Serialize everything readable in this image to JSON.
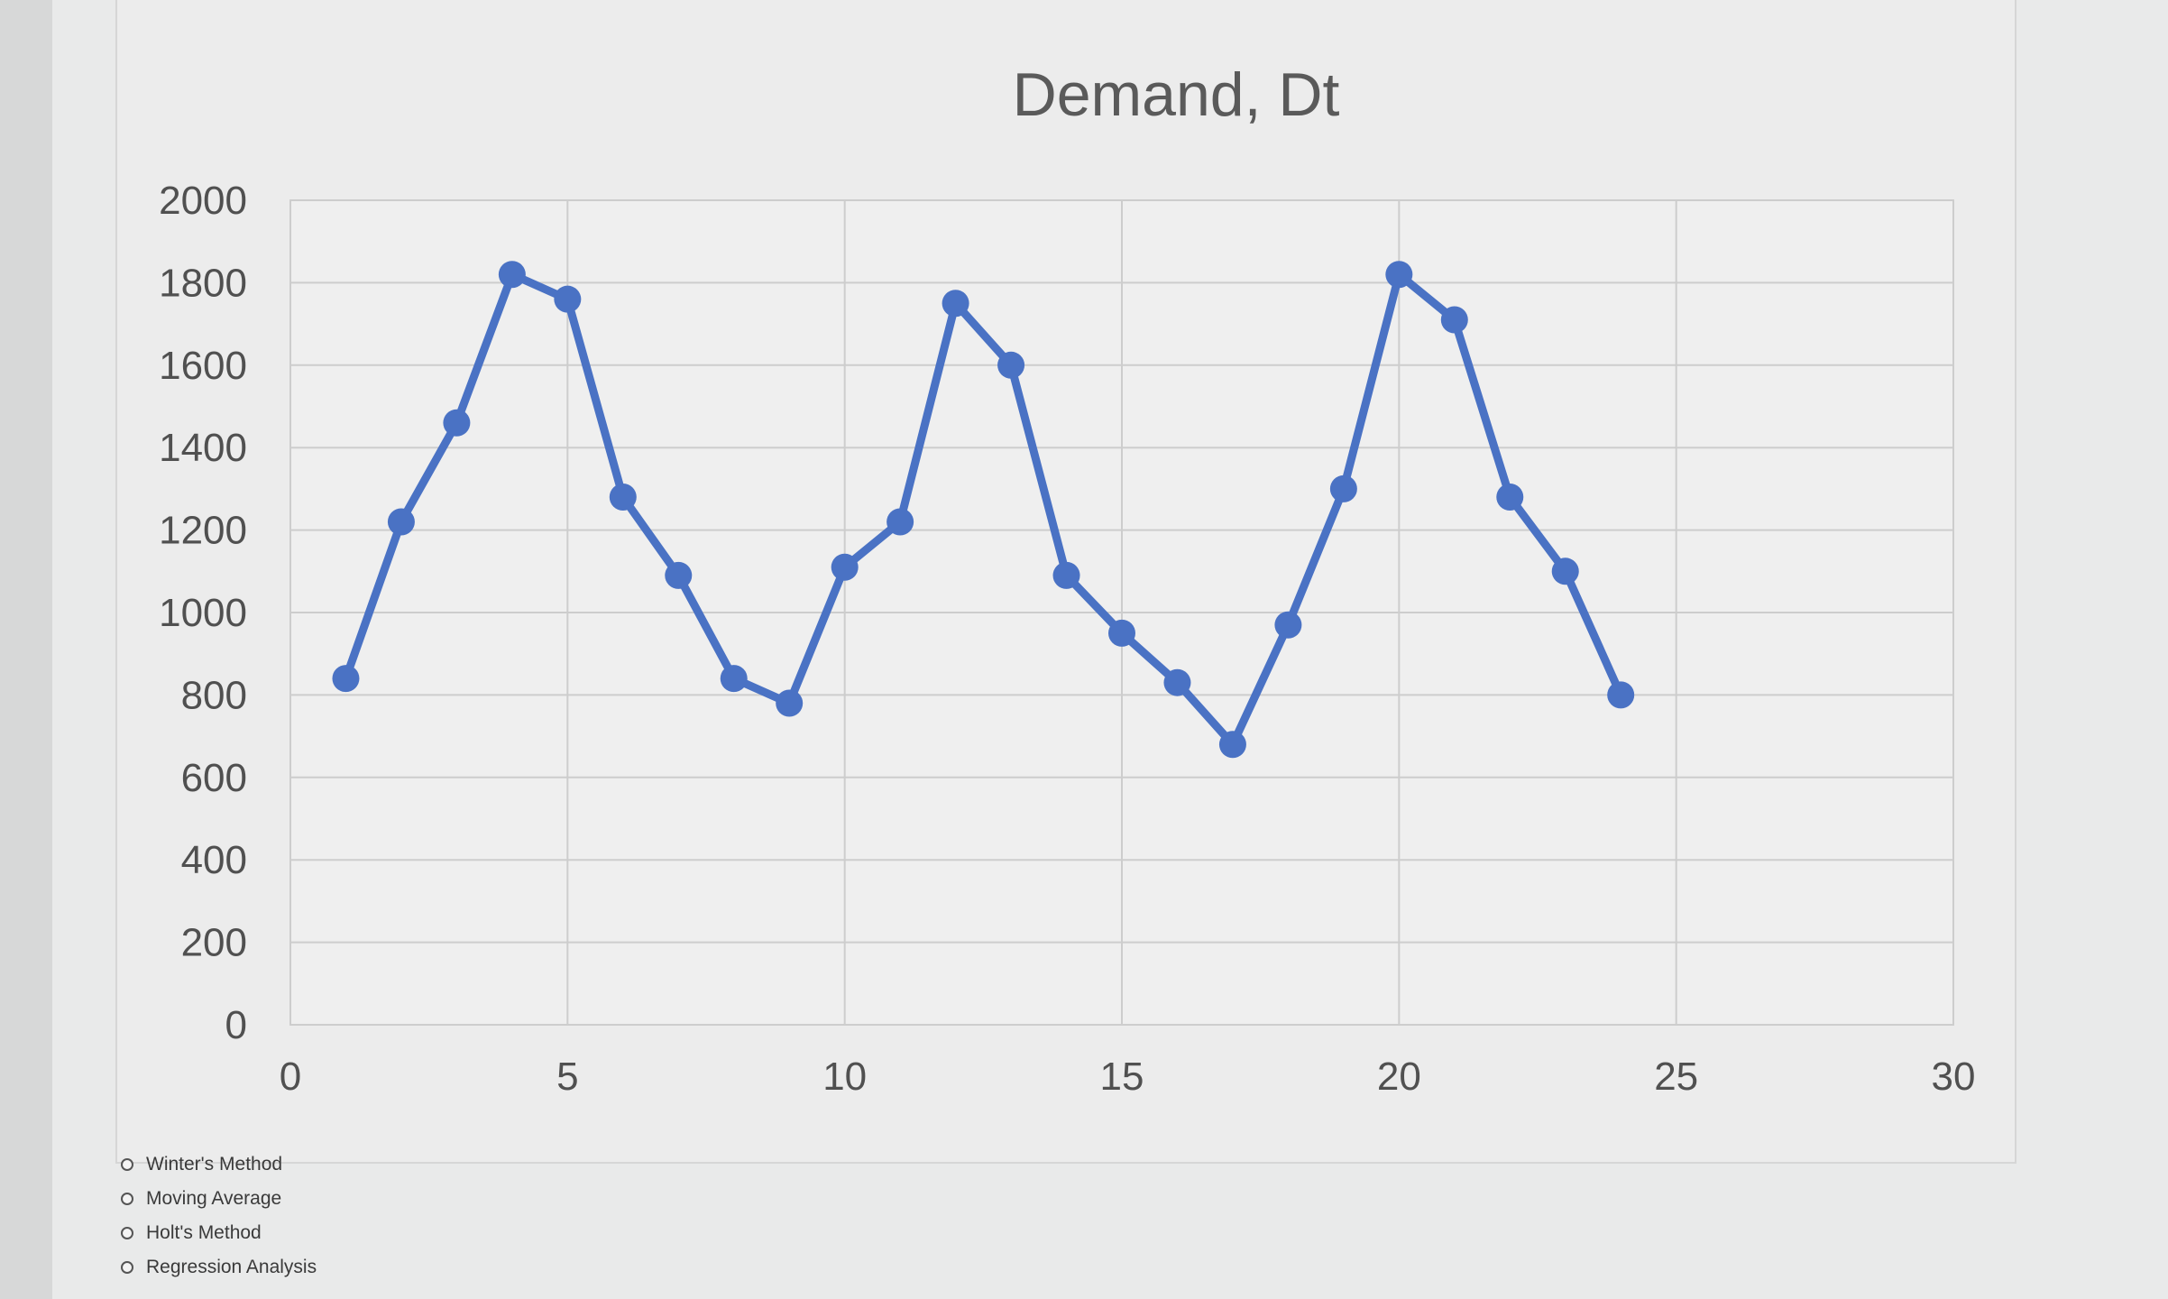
{
  "chart_data": {
    "type": "line",
    "title": "Demand, Dt",
    "xlabel": "",
    "ylabel": "",
    "xlim": [
      0,
      30
    ],
    "ylim": [
      0,
      2000
    ],
    "x_ticks": [
      0,
      5,
      10,
      15,
      20,
      25,
      30
    ],
    "y_ticks": [
      0,
      200,
      400,
      600,
      800,
      1000,
      1200,
      1400,
      1600,
      1800,
      2000
    ],
    "grid": true,
    "legend": "none",
    "series": [
      {
        "color": "#4a72c4",
        "x": [
          1,
          2,
          3,
          4,
          5,
          6,
          7,
          8,
          9,
          10,
          11,
          12,
          13,
          14,
          15,
          16,
          17,
          18,
          19,
          20,
          21,
          22,
          23,
          24
        ],
        "y": [
          840,
          1220,
          1460,
          1820,
          1760,
          1280,
          1090,
          840,
          780,
          1110,
          1220,
          1750,
          1600,
          1090,
          950,
          830,
          680,
          970,
          1300,
          1820,
          1710,
          1280,
          1100,
          800
        ]
      }
    ]
  },
  "options": [
    {
      "label": "Winter's Method"
    },
    {
      "label": "Moving Average"
    },
    {
      "label": "Holt's Method"
    },
    {
      "label": "Regression Analysis"
    }
  ]
}
